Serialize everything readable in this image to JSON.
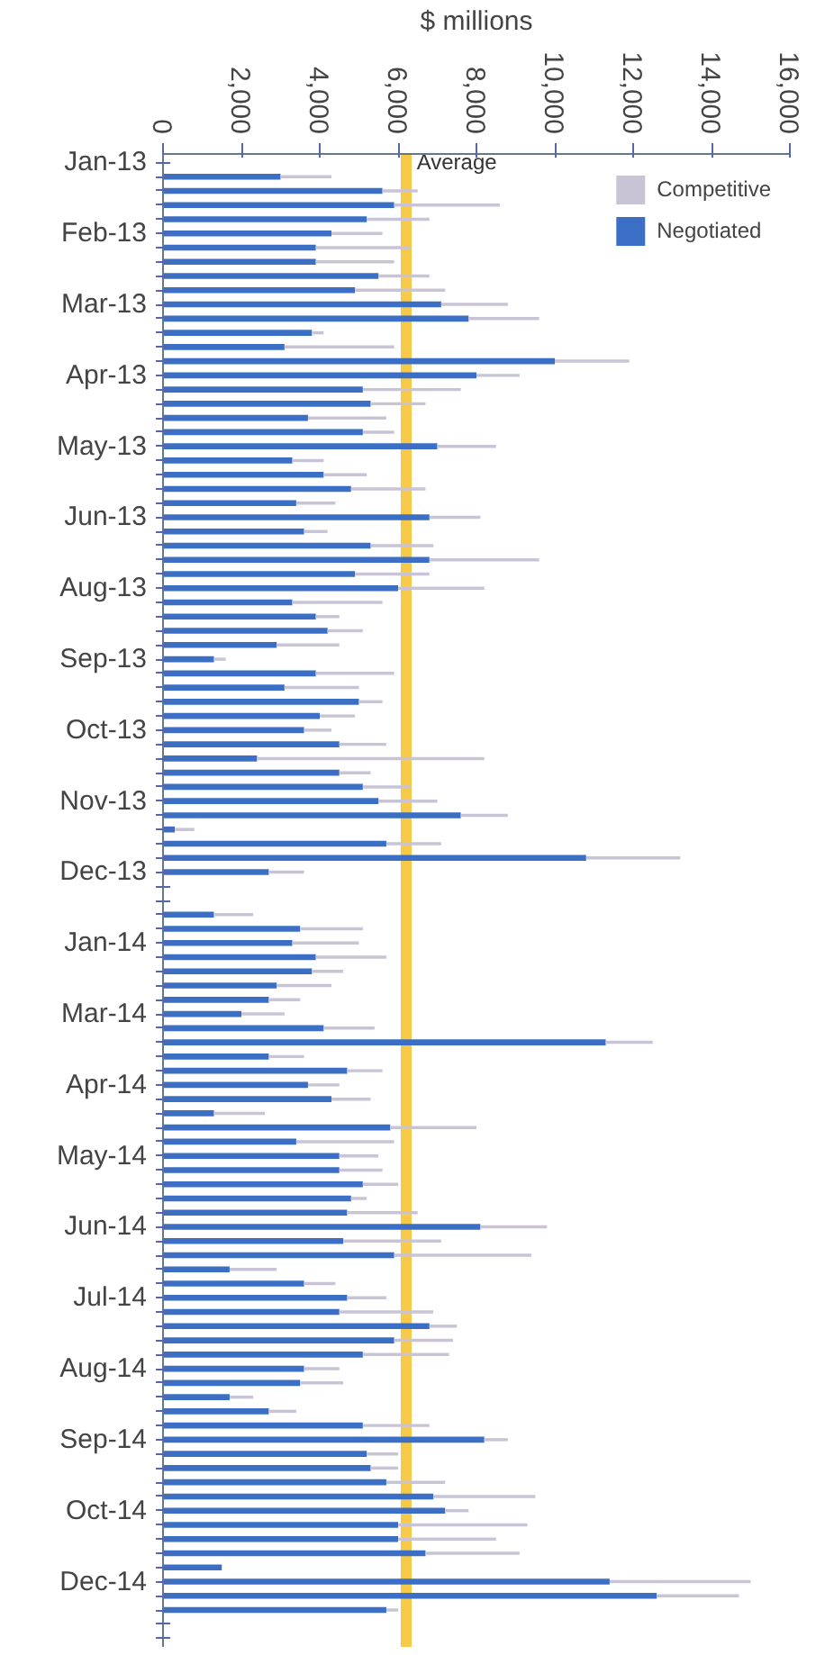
{
  "chart_data": {
    "type": "bar",
    "orientation": "horizontal",
    "stacked": true,
    "xlabel": "$ millions",
    "categories": [
      "Jan-13",
      null,
      null,
      null,
      null,
      "Feb-13",
      null,
      null,
      null,
      null,
      "Mar-13",
      null,
      null,
      null,
      null,
      "Apr-13",
      null,
      null,
      null,
      null,
      "May-13",
      null,
      null,
      null,
      null,
      "Jun-13",
      null,
      null,
      null,
      null,
      "Aug-13",
      null,
      null,
      null,
      null,
      "Sep-13",
      null,
      null,
      null,
      null,
      "Oct-13",
      null,
      null,
      null,
      null,
      "Nov-13",
      null,
      null,
      null,
      null,
      "Dec-13",
      null,
      null,
      null,
      null,
      "Jan-14",
      null,
      null,
      null,
      null,
      "Mar-14",
      null,
      null,
      null,
      null,
      "Apr-14",
      null,
      null,
      null,
      null,
      "May-14",
      null,
      null,
      null,
      null,
      "Jun-14",
      null,
      null,
      null,
      null,
      "Jul-14",
      null,
      null,
      null,
      null,
      "Aug-14",
      null,
      null,
      null,
      null,
      "Sep-14",
      null,
      null,
      null,
      null,
      "Oct-14",
      null,
      null,
      null,
      null,
      "Dec-14",
      null,
      null,
      null,
      null
    ],
    "series": [
      {
        "name": "Negotiated",
        "color": "#3b6fc6",
        "values": [
          null,
          3000,
          5600,
          5900,
          5200,
          4300,
          3900,
          3900,
          5500,
          4900,
          7100,
          7800,
          3800,
          3100,
          10000,
          8000,
          5100,
          5300,
          3700,
          5100,
          7000,
          3300,
          4100,
          4800,
          3400,
          6800,
          3600,
          5300,
          6800,
          4900,
          6000,
          3300,
          3900,
          4200,
          2900,
          1300,
          3900,
          3100,
          5000,
          4000,
          3600,
          4500,
          2400,
          4500,
          5100,
          5500,
          7600,
          300,
          5700,
          10800,
          2700,
          null,
          null,
          1300,
          3500,
          3300,
          3900,
          3800,
          2900,
          2700,
          2000,
          4100,
          11300,
          2700,
          4700,
          3700,
          4300,
          1300,
          5800,
          3400,
          4500,
          4500,
          5100,
          4800,
          4700,
          8100,
          4600,
          5900,
          1700,
          3600,
          4700,
          4500,
          6800,
          5900,
          5100,
          3600,
          3500,
          1700,
          2700,
          5100,
          8200,
          5200,
          5300,
          5700,
          6900,
          7200,
          6000,
          6000,
          6700,
          1500,
          11400,
          12600,
          5700,
          null,
          null
        ]
      },
      {
        "name": "Competitive",
        "color": "#c9c3d6",
        "values": [
          null,
          1300,
          900,
          2700,
          1600,
          1300,
          2400,
          2000,
          1300,
          2300,
          1700,
          1800,
          300,
          2800,
          1900,
          1100,
          2500,
          1400,
          2000,
          800,
          1500,
          800,
          1100,
          1900,
          1000,
          1300,
          600,
          1600,
          2800,
          1900,
          2200,
          2300,
          600,
          900,
          1600,
          300,
          2000,
          1900,
          600,
          900,
          700,
          1200,
          5800,
          800,
          1200,
          1500,
          1200,
          500,
          1400,
          2400,
          900,
          null,
          null,
          1000,
          1600,
          1700,
          1800,
          800,
          1400,
          800,
          1100,
          1300,
          1200,
          900,
          900,
          800,
          1000,
          1300,
          2200,
          2500,
          1000,
          1100,
          900,
          400,
          1800,
          1700,
          2500,
          3500,
          1200,
          800,
          1000,
          2400,
          700,
          1500,
          2200,
          900,
          1100,
          600,
          700,
          1700,
          600,
          800,
          700,
          1500,
          2600,
          600,
          3300,
          2500,
          2400,
          null,
          3600,
          2100,
          300,
          null,
          null
        ]
      }
    ],
    "ref_lines": [
      {
        "axis": "x",
        "value": 6200,
        "label": "Average",
        "color": "#f7c948"
      }
    ],
    "xlim": [
      0,
      16000
    ],
    "xticks": [
      0,
      {
        "value": 2000,
        "label": "2,000"
      },
      {
        "value": 4000,
        "label": "4,000"
      },
      {
        "value": 6000,
        "label": "6,000"
      },
      {
        "value": 8000,
        "label": "8,000"
      },
      {
        "value": 10000,
        "label": "10,000"
      },
      {
        "value": 12000,
        "label": "12,000"
      },
      {
        "value": 14000,
        "label": "14,000"
      },
      {
        "value": 16000,
        "label": "16,000"
      }
    ],
    "legend": "top right"
  }
}
